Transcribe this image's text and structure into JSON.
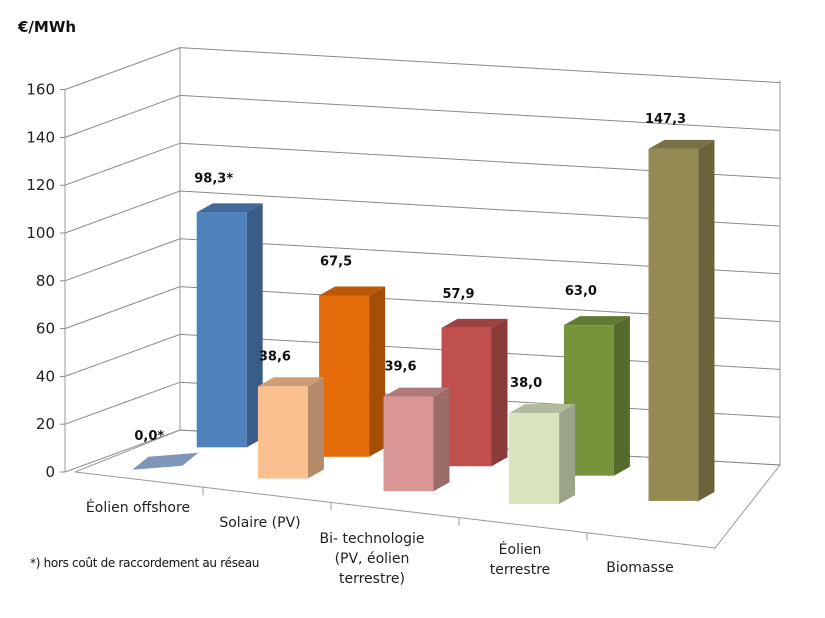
{
  "chart_data": {
    "type": "bar",
    "style": "3d-clustered-two-rows",
    "ylabel": "€/MWh",
    "ylim": [
      0,
      160
    ],
    "yticks": [
      0,
      20,
      40,
      60,
      80,
      100,
      120,
      140,
      160
    ],
    "grid": true,
    "legend": "none",
    "categories": [
      "Éolien offshore",
      "Solaire (PV)",
      "Bi- technologie\n(PV, éolien\nterrestre)",
      "Éolien\nterrestre",
      "Biomasse"
    ],
    "series": [
      {
        "row": "back",
        "values": [
          98.3,
          67.5,
          57.9,
          63.0,
          null
        ],
        "labels": [
          "98,3*",
          "67,5",
          "57,9",
          "63,0",
          ""
        ],
        "colors": [
          "#4f81bd",
          "#e46c0a",
          "#c0504d",
          "#77933c",
          null
        ]
      },
      {
        "row": "front",
        "values": [
          0.0,
          38.6,
          39.6,
          38.0,
          147.3
        ],
        "labels": [
          "0,0*",
          "38,6",
          "39,6",
          "38,0",
          "147,3"
        ],
        "colors": [
          "#7f96b8",
          "#fac090",
          "#d99694",
          "#d7e4bd",
          "#948a54"
        ]
      }
    ],
    "footnote": "*) hors coût de raccordement au réseau"
  }
}
